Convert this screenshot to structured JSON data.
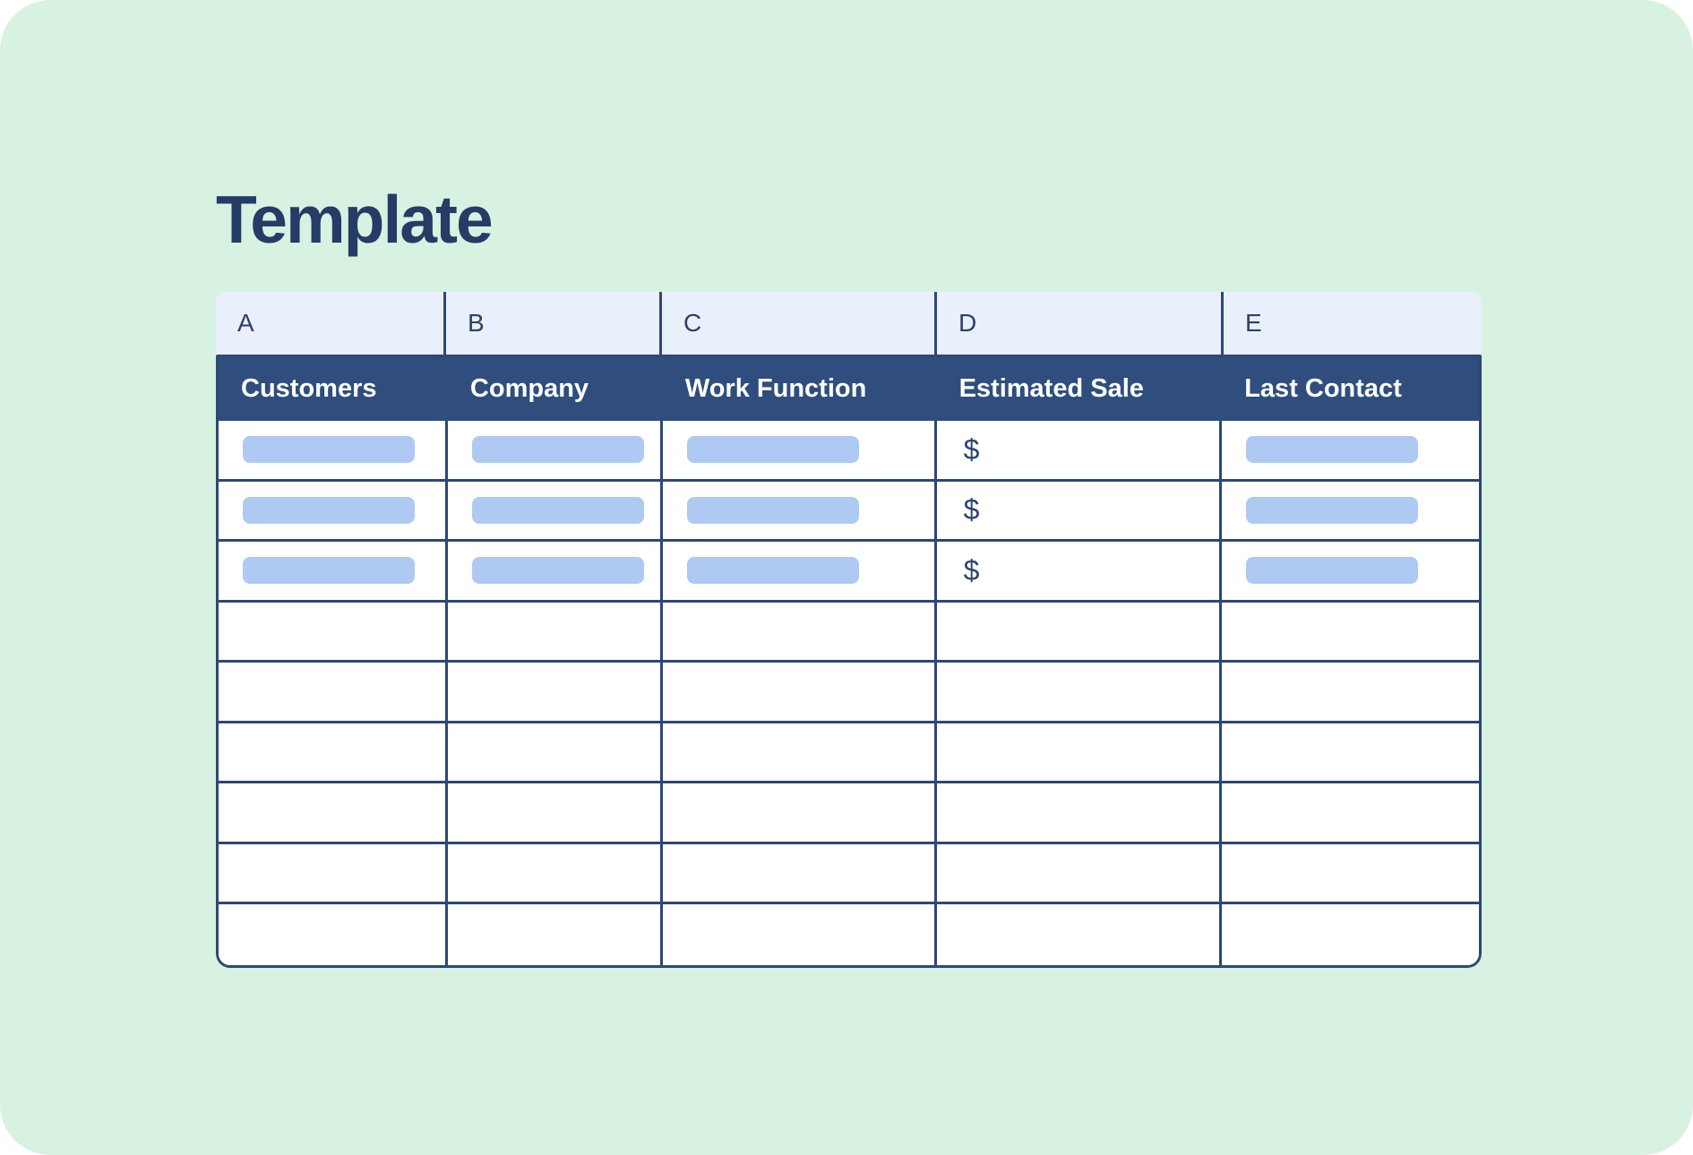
{
  "page": {
    "title": "Template",
    "colors": {
      "page-bg": "#d8f2e2",
      "outer-bg": "#ffffff",
      "title-color": "#243c66"
    }
  },
  "spreadsheet": {
    "column_letters": [
      "A",
      "B",
      "C",
      "D",
      "E"
    ],
    "headers": [
      "Customers",
      "Company",
      "Work Function",
      "Estimated Sale",
      "Last Contact"
    ],
    "currency_placeholder": "$",
    "placeholder_pattern": [
      "pill",
      "pill",
      "pill",
      "currency",
      "pill"
    ],
    "placeholder_row_count": 3,
    "empty_row_count": 6,
    "colors": {
      "header-bg": "#2f4e7d",
      "header-text": "#ffffff",
      "border-color": "#2c4875",
      "letter-row-bg": "#eaeffc",
      "letter-text": "#2d4166",
      "pill-color": "#aecaf3",
      "currency-color": "#2b4570",
      "cell-bg": "#ffffff"
    }
  }
}
